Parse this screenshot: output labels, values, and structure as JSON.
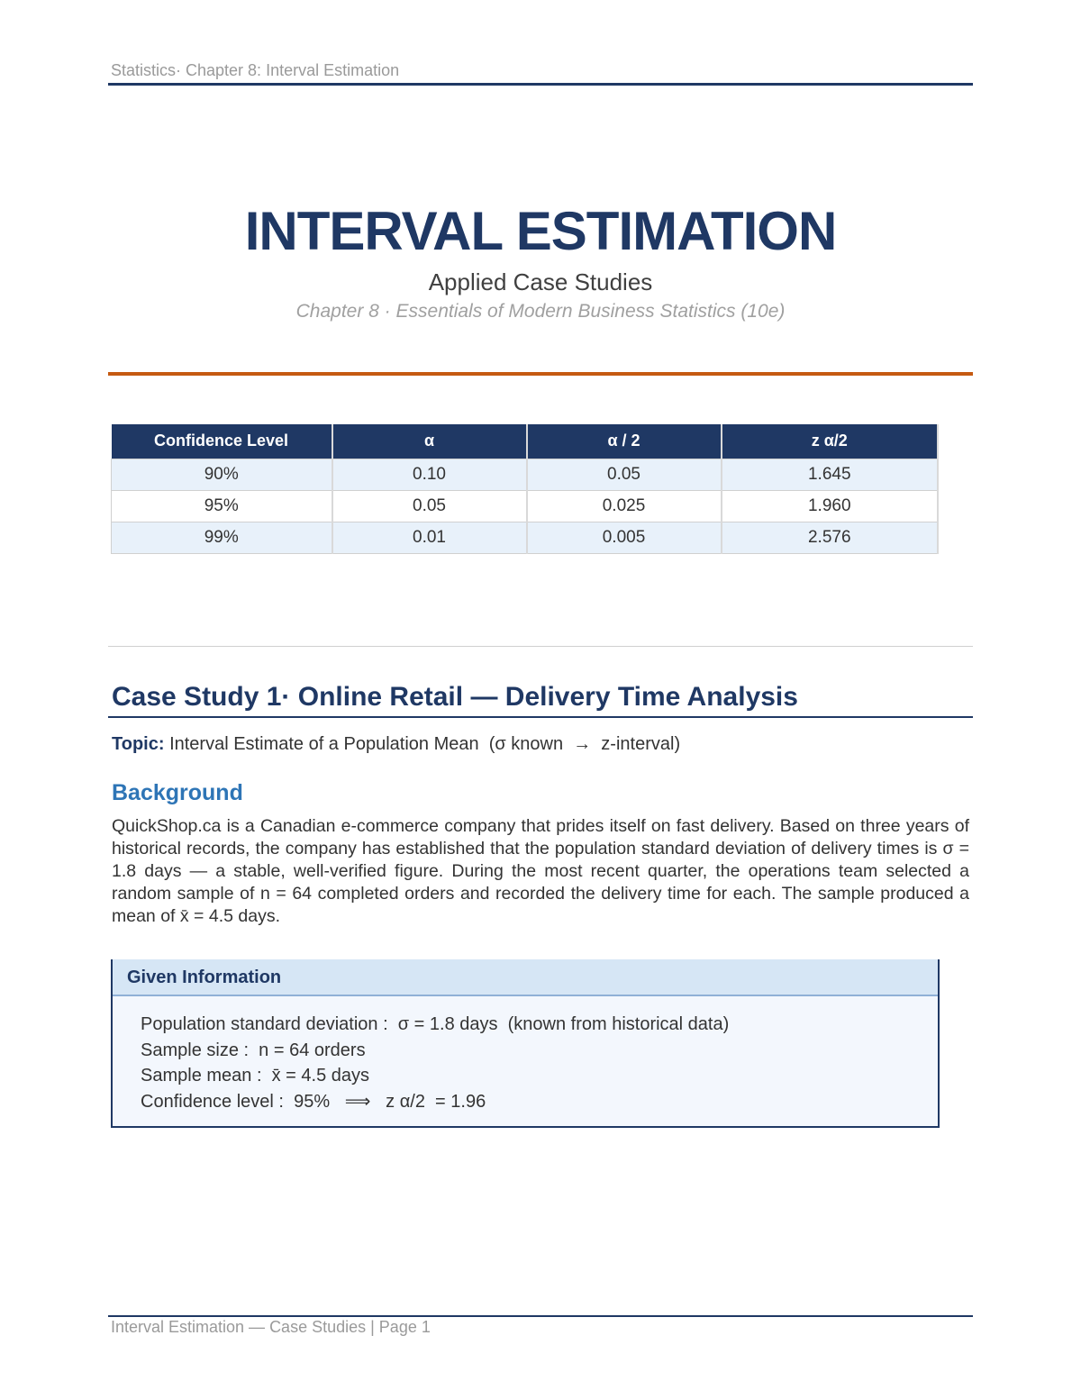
{
  "header": {
    "running_title": "Statistics·  Chapter 8: Interval Estimation"
  },
  "title": {
    "main": "INTERVAL ESTIMATION",
    "subtitle": "Applied Case Studies",
    "chapter_line": "Chapter 8  ·  Essentials of Modern Business Statistics (10e)"
  },
  "z_table": {
    "headers": [
      "Confidence Level",
      "α",
      "α / 2",
      "z α/2"
    ],
    "rows": [
      [
        "90%",
        "0.10",
        "0.05",
        "1.645"
      ],
      [
        "95%",
        "0.05",
        "0.025",
        "1.960"
      ],
      [
        "99%",
        "0.01",
        "0.005",
        "2.576"
      ]
    ]
  },
  "case_study": {
    "heading": "Case Study 1·  Online Retail — Delivery Time Analysis",
    "topic_label": "Topic:",
    "topic_text": " Interval Estimate of a Population Mean  (σ known  →  z-interval)",
    "background_heading": "Background",
    "background_text": "QuickShop.ca is a Canadian e-commerce company that prides itself on fast delivery. Based on three years of historical records, the company has established that the population standard deviation of delivery times is σ = 1.8 days — a stable, well-verified figure. During the most recent quarter, the operations team selected a random sample of n = 64 completed orders and recorded the delivery time for each. The sample produced a mean of x̄ = 4.5 days.",
    "given": {
      "heading": "Given Information",
      "lines": [
        "Population standard deviation :  σ = 1.8 days  (known from historical data)",
        "Sample size :  n = 64 orders",
        "Sample mean :  x̄ = 4.5 days",
        "Confidence level :  95%   ⟹   z α/2  = 1.96"
      ]
    }
  },
  "footer": {
    "text": "Interval Estimation — Case Studies  |  Page 1"
  }
}
